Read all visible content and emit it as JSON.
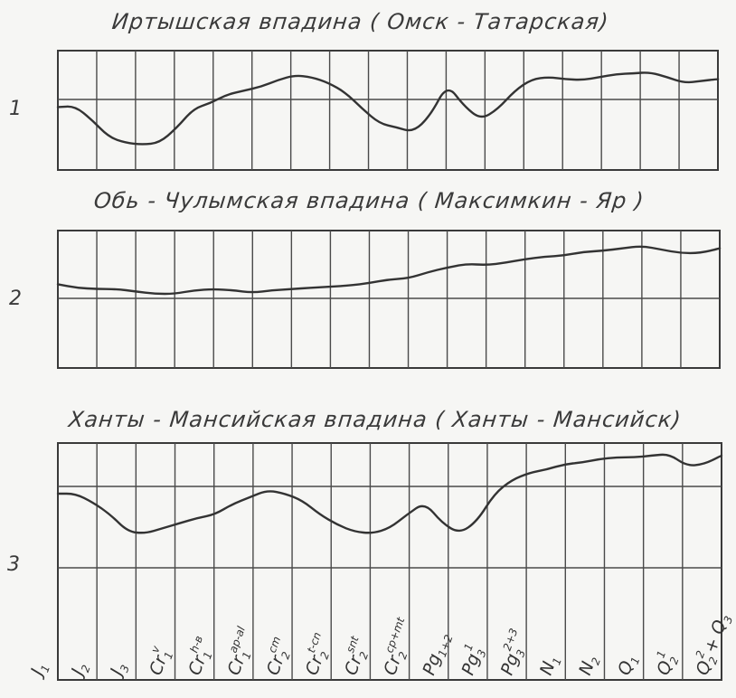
{
  "panels": [
    {
      "number": "1",
      "title": "Иртышская впадина ( Омск - Татарская)",
      "profile": [
        0.49,
        0.5,
        0.36,
        0.18,
        0.12,
        0.1,
        0.12,
        0.27,
        0.47,
        0.53,
        0.62,
        0.66,
        0.7,
        0.77,
        0.82,
        0.8,
        0.74,
        0.64,
        0.47,
        0.32,
        0.28,
        0.23,
        0.4,
        0.73,
        0.5,
        0.36,
        0.47,
        0.66,
        0.78,
        0.8,
        0.78,
        0.77,
        0.8,
        0.83,
        0.84,
        0.85,
        0.8,
        0.74,
        0.76,
        0.78
      ]
    },
    {
      "number": "2",
      "title": "Обь - Чулымская впадина ( Максимкин - Яр )",
      "profile": [
        0.7,
        0.67,
        0.66,
        0.66,
        0.64,
        0.62,
        0.62,
        0.65,
        0.66,
        0.65,
        0.63,
        0.65,
        0.66,
        0.67,
        0.68,
        0.69,
        0.71,
        0.74,
        0.75,
        0.8,
        0.84,
        0.87,
        0.86,
        0.88,
        0.91,
        0.93,
        0.94,
        0.97,
        0.98,
        1.0,
        1.02,
        0.99,
        0.96,
        0.96,
        1.0
      ]
    },
    {
      "number": "3",
      "title": "Ханты - Мансийская впадина ( Ханты - Мансийск)",
      "profile": [
        0.8,
        0.8,
        0.75,
        0.68,
        0.58,
        0.57,
        0.6,
        0.63,
        0.66,
        0.68,
        0.74,
        0.78,
        0.82,
        0.8,
        0.76,
        0.68,
        0.62,
        0.58,
        0.57,
        0.6,
        0.68,
        0.75,
        0.63,
        0.57,
        0.64,
        0.8,
        0.88,
        0.92,
        0.94,
        0.97,
        0.98,
        1.0,
        1.01,
        1.01,
        1.02,
        1.03,
        0.96,
        0.97,
        1.02
      ]
    }
  ],
  "stages": [
    {
      "base": "J",
      "sub": "1",
      "sup": ""
    },
    {
      "base": "J",
      "sub": "2",
      "sup": ""
    },
    {
      "base": "J",
      "sub": "3",
      "sup": ""
    },
    {
      "base": "Cr",
      "sub": "1",
      "sup": "v"
    },
    {
      "base": "Cr",
      "sub": "1",
      "sup": "h-в"
    },
    {
      "base": "Cr",
      "sub": "1",
      "sup": "ap-al"
    },
    {
      "base": "Cr",
      "sub": "2",
      "sup": "cm"
    },
    {
      "base": "Cr",
      "sub": "2",
      "sup": "t-cn"
    },
    {
      "base": "Cr",
      "sub": "2",
      "sup": "snt"
    },
    {
      "base": "Cr",
      "sub": "2",
      "sup": "cp+mt"
    },
    {
      "base": "Pg",
      "sub": "1+2",
      "sup": ""
    },
    {
      "base": "Pg",
      "sub": "3",
      "sup": "1"
    },
    {
      "base": "Pg",
      "sub": "3",
      "sup": "2+3"
    },
    {
      "base": "N",
      "sub": "1",
      "sup": ""
    },
    {
      "base": "N",
      "sub": "2",
      "sup": ""
    },
    {
      "base": "Q",
      "sub": "1",
      "sup": ""
    },
    {
      "base": "Q",
      "sub": "2",
      "sup": "1"
    },
    {
      "base": "Q",
      "sub": "2",
      "sup": "2",
      "tail": "+ Q",
      "tail_sub": "3"
    }
  ]
}
